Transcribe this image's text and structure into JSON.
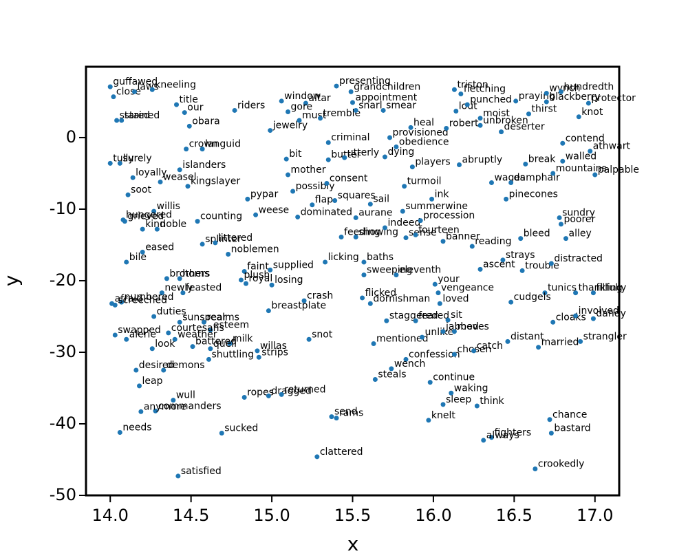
{
  "chart_data": {
    "type": "scatter",
    "x_label": "x",
    "y_label": "y",
    "color": "#1f77b4",
    "xlim": [
      13.85,
      17.15
    ],
    "ylim": [
      -50,
      9.9
    ],
    "xticks": [
      {
        "value": 14,
        "label": "14.0"
      },
      14.5,
      {
        "value": 15,
        "label": "15.0"
      },
      15.5,
      {
        "value": 16,
        "label": "16.0"
      },
      16.5,
      {
        "value": 17,
        "label": "17.0"
      }
    ],
    "yticks": [
      -50,
      -40,
      -30,
      -20,
      -10,
      0
    ],
    "points": [
      {
        "label": "guffawed",
        "x": 14.0,
        "y": 7.1
      },
      {
        "label": "close",
        "x": 14.02,
        "y": 5.7
      },
      {
        "label": "laws",
        "x": 14.15,
        "y": 6.4
      },
      {
        "label": "kneeling",
        "x": 14.26,
        "y": 6.7
      },
      {
        "label": "title",
        "x": 14.41,
        "y": 4.6
      },
      {
        "label": "our",
        "x": 14.46,
        "y": 3.5
      },
      {
        "label": "stared",
        "x": 14.04,
        "y": 2.4
      },
      {
        "label": "stained",
        "x": 14.07,
        "y": 2.4
      },
      {
        "label": "obara",
        "x": 14.49,
        "y": 1.6
      },
      {
        "label": "crown",
        "x": 14.47,
        "y": -1.6
      },
      {
        "label": "languid",
        "x": 14.57,
        "y": -1.6
      },
      {
        "label": "tully",
        "x": 14.0,
        "y": -3.6
      },
      {
        "label": "surely",
        "x": 14.06,
        "y": -3.6
      },
      {
        "label": "loyally",
        "x": 14.14,
        "y": -5.6
      },
      {
        "label": "islanders",
        "x": 14.43,
        "y": -4.5
      },
      {
        "label": "weasel",
        "x": 14.31,
        "y": -6.2
      },
      {
        "label": "kingslayer",
        "x": 14.48,
        "y": -6.8
      },
      {
        "label": "soot",
        "x": 14.11,
        "y": -8.0
      },
      {
        "label": "willis",
        "x": 14.27,
        "y": -10.3
      },
      {
        "label": "hungered",
        "x": 14.08,
        "y": -11.5
      },
      {
        "label": "grieved",
        "x": 14.09,
        "y": -11.7
      },
      {
        "label": "counting",
        "x": 14.54,
        "y": -11.7
      },
      {
        "label": "kind",
        "x": 14.2,
        "y": -12.8
      },
      {
        "label": "noble",
        "x": 14.29,
        "y": -12.8
      },
      {
        "label": "splinter",
        "x": 14.57,
        "y": -14.9
      },
      {
        "label": "littered",
        "x": 14.65,
        "y": -14.7
      },
      {
        "label": "eased",
        "x": 14.2,
        "y": -16.0
      },
      {
        "label": "bile",
        "x": 14.1,
        "y": -17.4
      },
      {
        "label": "brothers",
        "x": 14.35,
        "y": -19.7
      },
      {
        "label": "horns",
        "x": 14.43,
        "y": -19.7
      },
      {
        "label": "newly",
        "x": 14.32,
        "y": -21.7
      },
      {
        "label": "feasted",
        "x": 14.45,
        "y": -21.7
      },
      {
        "label": "afraid",
        "x": 14.01,
        "y": -23.2
      },
      {
        "label": "numbered",
        "x": 14.07,
        "y": -23.0
      },
      {
        "label": "screeched",
        "x": 14.03,
        "y": -23.4
      },
      {
        "label": "duties",
        "x": 14.27,
        "y": -25.0
      },
      {
        "label": "sunspear",
        "x": 14.43,
        "y": -25.8
      },
      {
        "label": "realms",
        "x": 14.58,
        "y": -25.8
      },
      {
        "label": "esteem",
        "x": 14.62,
        "y": -26.9
      },
      {
        "label": "swapped",
        "x": 14.03,
        "y": -27.6
      },
      {
        "label": "alerie",
        "x": 14.1,
        "y": -28.2
      },
      {
        "label": "courtesans",
        "x": 14.36,
        "y": -27.3
      },
      {
        "label": "weather",
        "x": 14.4,
        "y": -28.2
      },
      {
        "label": "look",
        "x": 14.26,
        "y": -29.5
      },
      {
        "label": "battered",
        "x": 14.51,
        "y": -29.2
      },
      {
        "label": "milk",
        "x": 14.74,
        "y": -28.8
      },
      {
        "label": "quell",
        "x": 14.62,
        "y": -29.5
      },
      {
        "label": "shuttling",
        "x": 14.61,
        "y": -31.0
      },
      {
        "label": "desired",
        "x": 14.16,
        "y": -32.5
      },
      {
        "label": "demons",
        "x": 14.33,
        "y": -32.5
      },
      {
        "label": "leap",
        "x": 14.18,
        "y": -34.7
      },
      {
        "label": "wull",
        "x": 14.39,
        "y": -36.7
      },
      {
        "label": "commanders",
        "x": 14.28,
        "y": -38.2
      },
      {
        "label": "anymore",
        "x": 14.19,
        "y": -38.3
      },
      {
        "label": "needs",
        "x": 14.06,
        "y": -41.2
      },
      {
        "label": "satisfied",
        "x": 14.42,
        "y": -47.3
      },
      {
        "label": "sucked",
        "x": 14.69,
        "y": -41.3
      },
      {
        "label": "ropes",
        "x": 14.83,
        "y": -36.3
      },
      {
        "label": "dragged",
        "x": 14.98,
        "y": -36.1
      },
      {
        "label": "returned",
        "x": 15.06,
        "y": -35.9
      },
      {
        "label": "breastplate",
        "x": 14.98,
        "y": -24.2
      },
      {
        "label": "crash",
        "x": 15.2,
        "y": -22.8
      },
      {
        "label": "snot",
        "x": 15.23,
        "y": -28.2
      },
      {
        "label": "willas",
        "x": 14.91,
        "y": -29.8
      },
      {
        "label": "strips",
        "x": 14.92,
        "y": -30.7
      },
      {
        "label": "faint",
        "x": 14.83,
        "y": -18.7
      },
      {
        "label": "supplied",
        "x": 14.99,
        "y": -18.5
      },
      {
        "label": "plush",
        "x": 14.81,
        "y": -19.9
      },
      {
        "label": "royal",
        "x": 14.84,
        "y": -20.4
      },
      {
        "label": "losing",
        "x": 15.0,
        "y": -20.6
      },
      {
        "label": "noblemen",
        "x": 14.73,
        "y": -16.3
      },
      {
        "label": "pypar",
        "x": 14.85,
        "y": -8.6
      },
      {
        "label": "weese",
        "x": 14.9,
        "y": -10.8
      },
      {
        "label": "dominated",
        "x": 15.16,
        "y": -11.1
      },
      {
        "label": "bit",
        "x": 15.09,
        "y": -3.0
      },
      {
        "label": "mother",
        "x": 15.1,
        "y": -5.2
      },
      {
        "label": "possibly",
        "x": 15.13,
        "y": -7.5
      },
      {
        "label": "consent",
        "x": 15.34,
        "y": -6.4
      },
      {
        "label": "flap",
        "x": 15.25,
        "y": -9.4
      },
      {
        "label": "squares",
        "x": 15.39,
        "y": -8.8
      },
      {
        "label": "sail",
        "x": 15.61,
        "y": -9.3
      },
      {
        "label": "aurane",
        "x": 15.52,
        "y": -11.2
      },
      {
        "label": "licking",
        "x": 15.33,
        "y": -17.4
      },
      {
        "label": "feeding",
        "x": 15.43,
        "y": -13.9
      },
      {
        "label": "showing",
        "x": 15.52,
        "y": -13.9
      },
      {
        "label": "baths",
        "x": 15.57,
        "y": -17.4
      },
      {
        "label": "riders",
        "x": 14.77,
        "y": 3.8
      },
      {
        "label": "jewelry",
        "x": 14.99,
        "y": 1.0
      },
      {
        "label": "window",
        "x": 15.06,
        "y": 5.1
      },
      {
        "label": "altar",
        "x": 15.21,
        "y": 4.8
      },
      {
        "label": "gore",
        "x": 15.1,
        "y": 3.6
      },
      {
        "label": "must",
        "x": 15.17,
        "y": 2.4
      },
      {
        "label": "tremble",
        "x": 15.3,
        "y": 2.7
      },
      {
        "label": "presenting",
        "x": 15.4,
        "y": 7.2
      },
      {
        "label": "appointment",
        "x": 15.5,
        "y": 4.9
      },
      {
        "label": "grandchildren",
        "x": 15.49,
        "y": 6.4
      },
      {
        "label": "snarl",
        "x": 15.52,
        "y": 3.8
      },
      {
        "label": "smear",
        "x": 15.69,
        "y": 3.8
      },
      {
        "label": "criminal",
        "x": 15.35,
        "y": -0.7
      },
      {
        "label": "butter",
        "x": 15.35,
        "y": -3.1
      },
      {
        "label": "utterly",
        "x": 15.45,
        "y": -2.8
      },
      {
        "label": "dying",
        "x": 15.7,
        "y": -2.7
      },
      {
        "label": "provisioned",
        "x": 15.73,
        "y": 0.0
      },
      {
        "label": "obedience",
        "x": 15.77,
        "y": -1.3
      },
      {
        "label": "heal",
        "x": 15.86,
        "y": 1.4
      },
      {
        "label": "turmoil",
        "x": 15.82,
        "y": -6.8
      },
      {
        "label": "summerwine",
        "x": 15.81,
        "y": -10.3
      },
      {
        "label": "indeed",
        "x": 15.7,
        "y": -12.6
      },
      {
        "label": "sense",
        "x": 15.83,
        "y": -14.0
      },
      {
        "label": "fourteen",
        "x": 15.89,
        "y": -13.6
      },
      {
        "label": "procession",
        "x": 15.92,
        "y": -11.6
      },
      {
        "label": "sweeping",
        "x": 15.57,
        "y": -19.2
      },
      {
        "label": "eleventh",
        "x": 15.77,
        "y": -19.2
      },
      {
        "label": "flicked",
        "x": 15.56,
        "y": -22.4
      },
      {
        "label": "dornishman",
        "x": 15.61,
        "y": -23.2
      },
      {
        "label": "loved",
        "x": 16.04,
        "y": -23.2
      },
      {
        "label": "your",
        "x": 16.01,
        "y": -20.5
      },
      {
        "label": "vengeance",
        "x": 16.03,
        "y": -21.7
      },
      {
        "label": "staggered",
        "x": 15.71,
        "y": -25.6
      },
      {
        "label": "feared",
        "x": 15.89,
        "y": -25.6
      },
      {
        "label": "sit",
        "x": 16.09,
        "y": -25.5
      },
      {
        "label": "mentioned",
        "x": 15.63,
        "y": -28.8
      },
      {
        "label": "unlike",
        "x": 15.93,
        "y": -27.9
      },
      {
        "label": "jabbed",
        "x": 16.06,
        "y": -27.1
      },
      {
        "label": "moves",
        "x": 16.13,
        "y": -27.1
      },
      {
        "label": "confession",
        "x": 15.83,
        "y": -31.0
      },
      {
        "label": "chosen",
        "x": 16.13,
        "y": -30.3
      },
      {
        "label": "wench",
        "x": 15.74,
        "y": -32.3
      },
      {
        "label": "steals",
        "x": 15.64,
        "y": -33.8
      },
      {
        "label": "continue",
        "x": 15.98,
        "y": -34.2
      },
      {
        "label": "waking",
        "x": 16.11,
        "y": -35.7
      },
      {
        "label": "sleep",
        "x": 16.06,
        "y": -37.3
      },
      {
        "label": "think",
        "x": 16.27,
        "y": -37.5
      },
      {
        "label": "knelt",
        "x": 15.97,
        "y": -39.5
      },
      {
        "label": "send",
        "x": 15.37,
        "y": -39.0
      },
      {
        "label": "rams",
        "x": 15.4,
        "y": -39.2
      },
      {
        "label": "clattered",
        "x": 15.28,
        "y": -44.6
      },
      {
        "label": "catch",
        "x": 16.25,
        "y": -29.8
      },
      {
        "label": "distant",
        "x": 16.46,
        "y": -28.5
      },
      {
        "label": "married",
        "x": 16.65,
        "y": -29.3
      },
      {
        "label": "strangler",
        "x": 16.91,
        "y": -28.5
      },
      {
        "label": "cloaks",
        "x": 16.74,
        "y": -25.8
      },
      {
        "label": "involved",
        "x": 16.88,
        "y": -24.9
      },
      {
        "label": "dandy",
        "x": 16.99,
        "y": -25.3
      },
      {
        "label": "thankfully",
        "x": 16.88,
        "y": -21.7
      },
      {
        "label": "filling",
        "x": 16.99,
        "y": -21.7
      },
      {
        "label": "tunics",
        "x": 16.69,
        "y": -21.7
      },
      {
        "label": "cudgels",
        "x": 16.48,
        "y": -23.0
      },
      {
        "label": "ascent",
        "x": 16.29,
        "y": -18.4
      },
      {
        "label": "reading",
        "x": 16.24,
        "y": -15.2
      },
      {
        "label": "banner",
        "x": 16.06,
        "y": -14.5
      },
      {
        "label": "bleed",
        "x": 16.54,
        "y": -14.1
      },
      {
        "label": "trouble",
        "x": 16.55,
        "y": -18.6
      },
      {
        "label": "distracted",
        "x": 16.73,
        "y": -17.6
      },
      {
        "label": "alley",
        "x": 16.82,
        "y": -14.1
      },
      {
        "label": "poorer",
        "x": 16.79,
        "y": -12.1
      },
      {
        "label": "sundry",
        "x": 16.78,
        "y": -11.2
      },
      {
        "label": "wages",
        "x": 16.36,
        "y": -6.3
      },
      {
        "label": "damphair",
        "x": 16.48,
        "y": -6.3
      },
      {
        "label": "pinecones",
        "x": 16.45,
        "y": -8.6
      },
      {
        "label": "abruptly",
        "x": 16.16,
        "y": -3.8
      },
      {
        "label": "break",
        "x": 16.57,
        "y": -3.7
      },
      {
        "label": "walled",
        "x": 16.8,
        "y": -3.3
      },
      {
        "label": "contend",
        "x": 16.8,
        "y": -0.8
      },
      {
        "label": "athwart",
        "x": 16.97,
        "y": -1.9
      },
      {
        "label": "palpable",
        "x": 17.0,
        "y": -5.2
      },
      {
        "label": "mountains",
        "x": 16.74,
        "y": -5.0
      },
      {
        "label": "knot",
        "x": 16.9,
        "y": 2.9
      },
      {
        "label": "thirst",
        "x": 16.59,
        "y": 3.3
      },
      {
        "label": "moist",
        "x": 16.29,
        "y": 2.7
      },
      {
        "label": "unbroken",
        "x": 16.29,
        "y": 1.7
      },
      {
        "label": "deserter",
        "x": 16.42,
        "y": 0.8
      },
      {
        "label": "robert",
        "x": 16.08,
        "y": 1.3
      },
      {
        "label": "lout",
        "x": 16.14,
        "y": 3.7
      },
      {
        "label": "punched",
        "x": 16.21,
        "y": 4.6
      },
      {
        "label": "fletching",
        "x": 16.17,
        "y": 6.1
      },
      {
        "label": "triston",
        "x": 16.13,
        "y": 6.7
      },
      {
        "label": "praying",
        "x": 16.51,
        "y": 5.1
      },
      {
        "label": "wynch",
        "x": 16.7,
        "y": 6.2
      },
      {
        "label": "blackberry",
        "x": 16.7,
        "y": 5.0
      },
      {
        "label": "hundredth",
        "x": 16.79,
        "y": 6.4
      },
      {
        "label": "protector",
        "x": 16.96,
        "y": 4.8
      },
      {
        "label": "chance",
        "x": 16.72,
        "y": -39.4
      },
      {
        "label": "bastard",
        "x": 16.73,
        "y": -41.3
      },
      {
        "label": "fighters",
        "x": 16.36,
        "y": -41.9
      },
      {
        "label": "always",
        "x": 16.31,
        "y": -42.3
      },
      {
        "label": "crookedly",
        "x": 16.63,
        "y": -46.3
      },
      {
        "label": "players",
        "x": 15.87,
        "y": -4.1
      },
      {
        "label": "ink",
        "x": 15.99,
        "y": -8.6
      },
      {
        "label": "strays",
        "x": 16.43,
        "y": -17.1
      }
    ]
  }
}
